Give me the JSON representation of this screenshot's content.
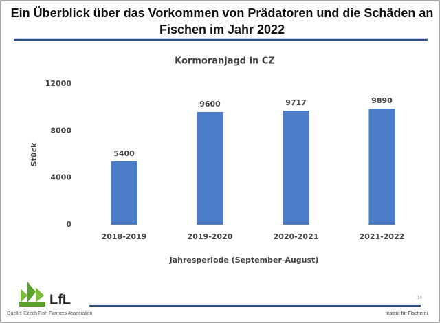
{
  "slide": {
    "title_lines": [
      "Ein Überblick über das Vorkommen von Prädatoren und die Schäden an",
      "Fischen im Jahr 2022"
    ],
    "logo": "LfL",
    "source": "Quelle: Czech Fish Farmers Association",
    "page_number": "14",
    "institute": "Institut für Fischerei"
  },
  "chart_data": {
    "type": "bar",
    "title": "Kormoranjagd in CZ",
    "categories": [
      "2018-2019",
      "2019-2020",
      "2020-2021",
      "2021-2022"
    ],
    "values": [
      5400,
      9600,
      9717,
      9890
    ],
    "color": "#4a7cc7",
    "ylabel": "Stück",
    "xlabel": "Jahresperiode (September-August)",
    "ylim": [
      0,
      12000
    ],
    "yticks": [
      0,
      4000,
      8000,
      12000
    ],
    "grid": false,
    "data_labels": true
  }
}
